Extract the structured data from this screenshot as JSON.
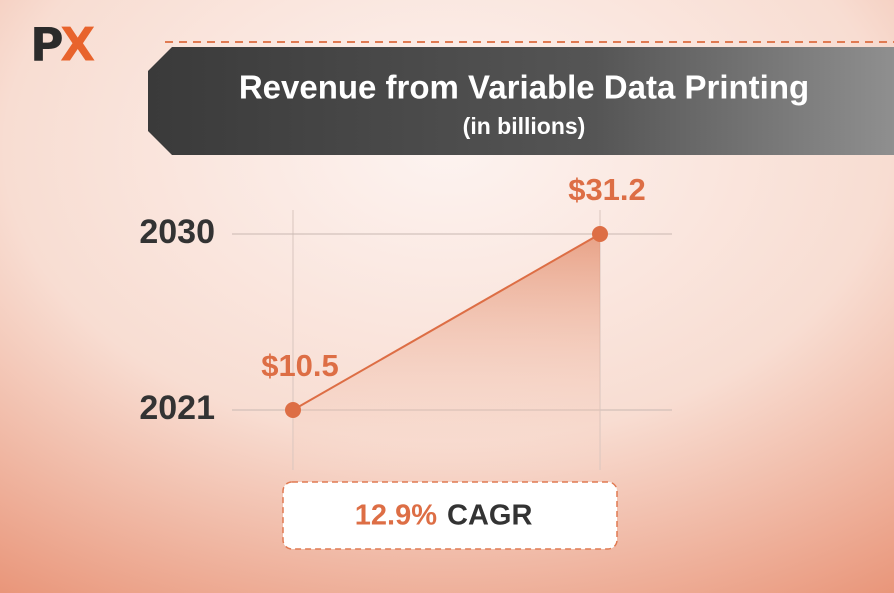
{
  "logo": {
    "first": "P",
    "second": "X"
  },
  "chart_data": {
    "type": "line",
    "title": "Revenue from Variable Data Printing",
    "subtitle": "(in billions)",
    "categories": [
      "2021",
      "2030"
    ],
    "values": [
      10.5,
      31.2
    ],
    "value_labels": [
      "$10.5",
      "$31.2"
    ],
    "color": "#dd6e45",
    "grid": true,
    "annotation": {
      "value": "12.9%",
      "label": "CAGR"
    }
  }
}
